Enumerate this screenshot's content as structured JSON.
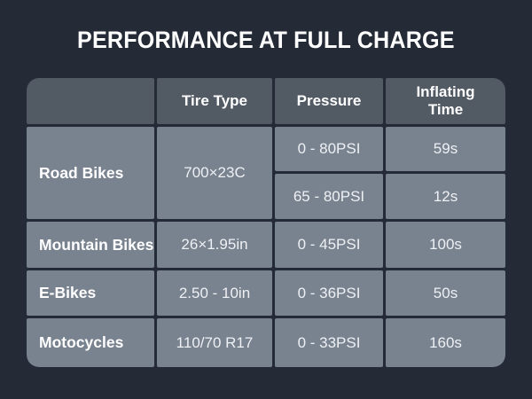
{
  "page": {
    "title": "PERFORMANCE AT FULL CHARGE"
  },
  "colors": {
    "page_bg": "#242b37",
    "header_bg": "#525a64",
    "cell_bg": "#79828f",
    "divider": "#242b37",
    "text_bright": "#ffffff",
    "text_soft": "#eef1f4"
  },
  "chart_data": {
    "type": "table",
    "title": "PERFORMANCE AT FULL CHARGE",
    "columns": [
      "",
      "Tire Type",
      "Pressure",
      "Inflating Time"
    ],
    "rows": [
      {
        "label": "Road Bikes",
        "tire_type": "700×23C",
        "entries": [
          {
            "pressure": "0 - 80PSI",
            "time": "59s"
          },
          {
            "pressure": "65 - 80PSI",
            "time": "12s"
          }
        ]
      },
      {
        "label": "Mountain Bikes",
        "tire_type": "26×1.95in",
        "entries": [
          {
            "pressure": "0 - 45PSI",
            "time": "100s"
          }
        ]
      },
      {
        "label": "E-Bikes",
        "tire_type": "2.50 - 10in",
        "entries": [
          {
            "pressure": "0 - 36PSI",
            "time": "50s"
          }
        ]
      },
      {
        "label": "Motocycles",
        "tire_type": "110/70 R17",
        "entries": [
          {
            "pressure": "0 - 33PSI",
            "time": "160s"
          }
        ]
      }
    ]
  }
}
